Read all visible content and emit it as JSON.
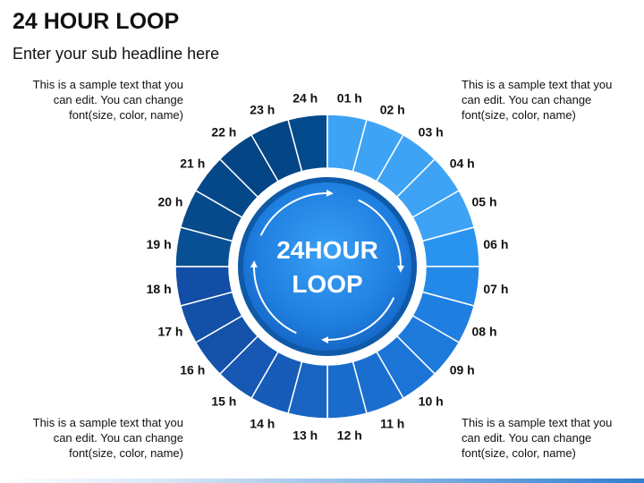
{
  "header": {
    "title": "24 HOUR LOOP",
    "subtitle": "Enter your sub headline here"
  },
  "notes": {
    "top_left": "This is a sample text that you\ncan edit. You can change\nfont(size, color, name)",
    "top_right": "This is a sample text that you\ncan edit. You can change\nfont(size, color, name)",
    "bottom_left": "This is a sample text that you\ncan edit. You can change\nfont(size, color, name)",
    "bottom_right": "This is a sample text that you\ncan edit. You can change\nfont(size, color, name)"
  },
  "center": {
    "line1": "24HOUR",
    "line2": "LOOP"
  },
  "hours": [
    "24 h",
    "01 h",
    "02 h",
    "03 h",
    "04 h",
    "05 h",
    "06 h",
    "07 h",
    "08 h",
    "09 h",
    "10 h",
    "11 h",
    "12 h",
    "13 h",
    "14 h",
    "15 h",
    "16 h",
    "17 h",
    "18 h",
    "19 h",
    "20 h",
    "21 h",
    "22 h",
    "23 h"
  ],
  "segment_colors": [
    "#034a8c",
    "#3ea3f5",
    "#3ea3f5",
    "#3ea3f5",
    "#3ea3f5",
    "#3ea3f5",
    "#2994f0",
    "#2389e8",
    "#1f7fe0",
    "#1d7adb",
    "#1b74d6",
    "#1a6ed0",
    "#1a6ccc",
    "#1964c2",
    "#165cb8",
    "#1658b3",
    "#1452aa",
    "#1350a8",
    "#134ea6",
    "#085093",
    "#064a8c",
    "#054889",
    "#034585",
    "#034585"
  ]
}
